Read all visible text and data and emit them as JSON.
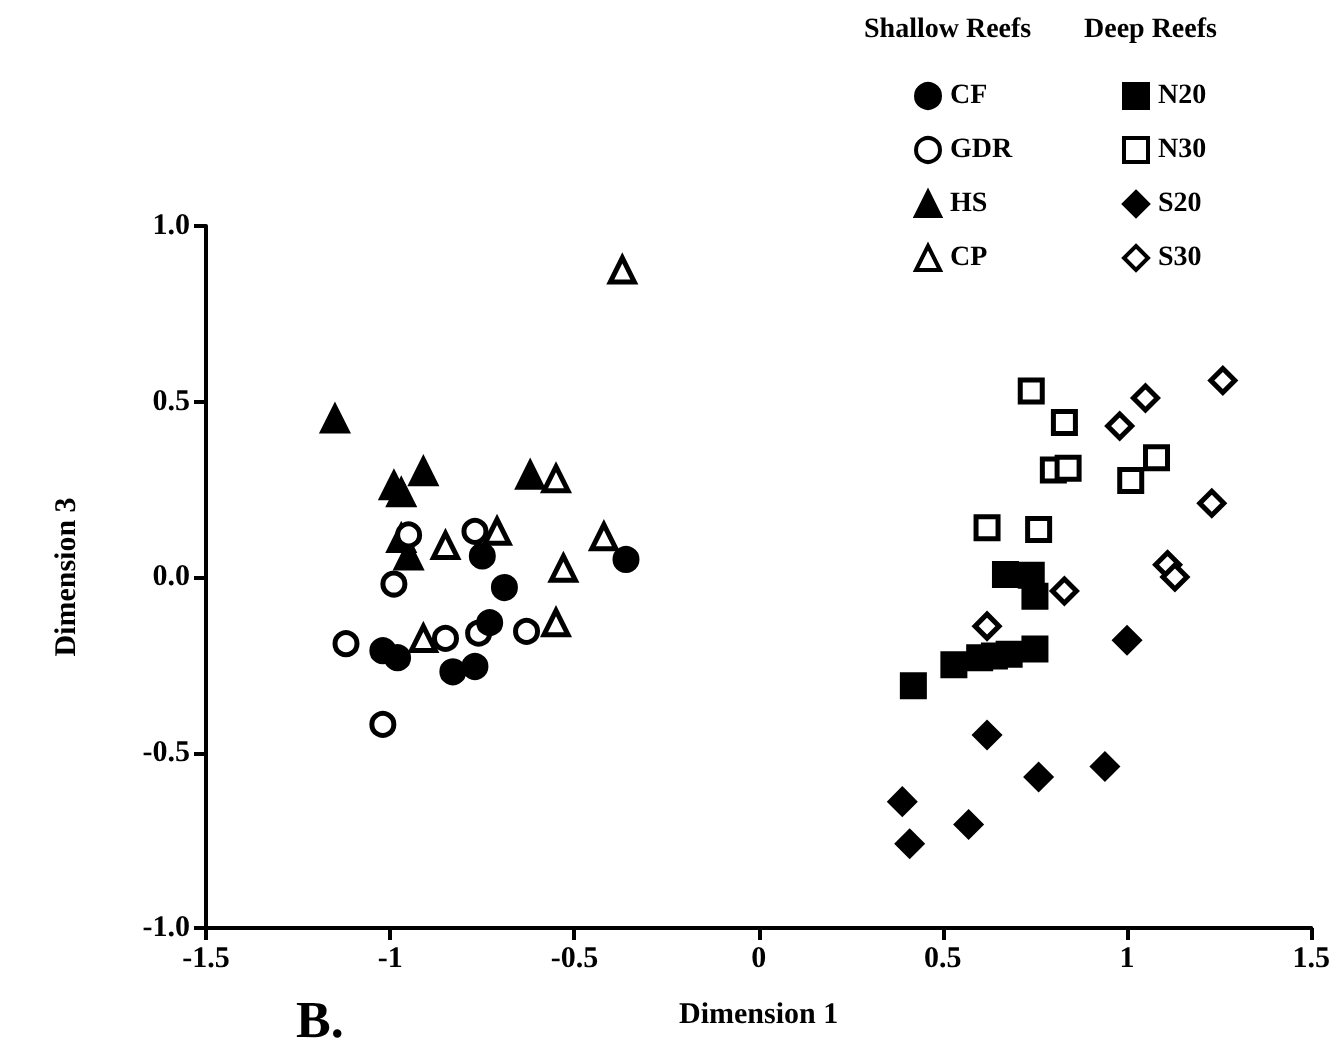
{
  "chart_data": {
    "type": "scatter",
    "xlabel": "Dimension 1",
    "ylabel": "Dimension 3",
    "xlim": [
      -1.5,
      1.5
    ],
    "xticks": [
      -1.5,
      -1,
      -0.5,
      0,
      0.5,
      1,
      1.5
    ],
    "ylim": [
      -1.0,
      1.0
    ],
    "yticks": [
      {
        "value": -1.0,
        "label": "-1.0"
      },
      {
        "value": -0.5,
        "label": "-0.5"
      },
      {
        "value": 0,
        "label": "0.0"
      },
      {
        "value": 0.5,
        "label": "0.5"
      },
      {
        "value": 1.0,
        "label": "1.0"
      }
    ],
    "grid": false,
    "legend": "top right",
    "annotations": [
      "Shallow Reefs",
      "Deep Reefs",
      "B."
    ],
    "series": [
      {
        "name": "CF",
        "color": "#000000",
        "marker": "circle",
        "x": [
          -0.75,
          -0.36,
          -0.69,
          -0.73,
          -1.02,
          -0.98,
          -0.83,
          -0.77
        ],
        "values": [
          0.06,
          0.05,
          -0.03,
          -0.13,
          -0.21,
          -0.23,
          -0.27,
          -0.255
        ]
      },
      {
        "name": "GDR",
        "color": "#ffffff",
        "marker": "circle",
        "x": [
          -0.95,
          -0.77,
          -0.99,
          -1.12,
          -0.85,
          -0.76,
          -0.63,
          -1.02
        ],
        "values": [
          0.12,
          0.13,
          -0.02,
          -0.19,
          -0.175,
          -0.16,
          -0.155,
          -0.42
        ]
      },
      {
        "name": "HS",
        "color": "#000000",
        "marker": "triangle",
        "x": [
          -1.15,
          -0.91,
          -0.99,
          -0.97,
          -0.62,
          -0.97,
          -0.95
        ],
        "values": [
          0.45,
          0.3,
          0.26,
          0.24,
          0.29,
          0.11,
          0.06
        ]
      },
      {
        "name": "CP",
        "color": "#ffffff",
        "marker": "triangle",
        "x": [
          -0.37,
          -0.55,
          -0.71,
          -0.85,
          -0.42,
          -0.53,
          -0.55,
          -0.91
        ],
        "values": [
          0.875,
          0.28,
          0.13,
          0.09,
          0.115,
          0.025,
          -0.13,
          -0.175
        ]
      },
      {
        "name": "N20",
        "color": "#000000",
        "marker": "square",
        "x": [
          0.67,
          0.74,
          0.75,
          0.75,
          0.68,
          0.64,
          0.6,
          0.53,
          0.42
        ],
        "values": [
          0.007,
          0.005,
          -0.055,
          -0.205,
          -0.22,
          -0.225,
          -0.23,
          -0.25,
          -0.31
        ]
      },
      {
        "name": "N30",
        "color": "#ffffff",
        "marker": "square",
        "x": [
          0.74,
          0.83,
          0.8,
          0.84,
          1.08,
          1.01,
          0.62,
          0.76
        ],
        "values": [
          0.53,
          0.44,
          0.305,
          0.31,
          0.34,
          0.275,
          0.14,
          0.135
        ]
      },
      {
        "name": "S20",
        "color": "#000000",
        "marker": "diamond",
        "x": [
          1.0,
          0.62,
          0.76,
          0.94,
          0.39,
          0.57,
          0.41
        ],
        "values": [
          -0.18,
          -0.45,
          -0.57,
          -0.54,
          -0.64,
          -0.705,
          -0.76
        ]
      },
      {
        "name": "S30",
        "color": "#ffffff",
        "marker": "diamond",
        "x": [
          1.26,
          1.05,
          0.98,
          1.23,
          1.11,
          1.13,
          0.83,
          0.62
        ],
        "values": [
          0.56,
          0.51,
          0.43,
          0.21,
          0.035,
          0.0,
          -0.04,
          -0.14
        ]
      }
    ]
  }
}
